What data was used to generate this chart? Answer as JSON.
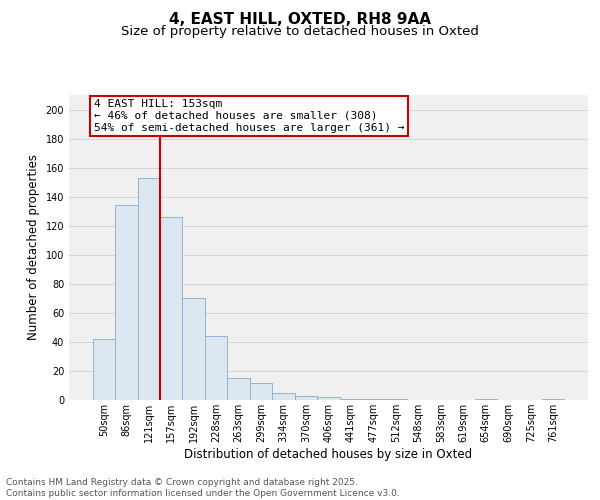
{
  "title": "4, EAST HILL, OXTED, RH8 9AA",
  "subtitle": "Size of property relative to detached houses in Oxted",
  "xlabel": "Distribution of detached houses by size in Oxted",
  "ylabel": "Number of detached properties",
  "categories": [
    "50sqm",
    "86sqm",
    "121sqm",
    "157sqm",
    "192sqm",
    "228sqm",
    "263sqm",
    "299sqm",
    "334sqm",
    "370sqm",
    "406sqm",
    "441sqm",
    "477sqm",
    "512sqm",
    "548sqm",
    "583sqm",
    "619sqm",
    "654sqm",
    "690sqm",
    "725sqm",
    "761sqm"
  ],
  "values": [
    42,
    134,
    153,
    126,
    70,
    44,
    15,
    12,
    5,
    3,
    2,
    1,
    1,
    1,
    0,
    0,
    0,
    1,
    0,
    0,
    1
  ],
  "bar_color": "#dce6f1",
  "bar_edge_color": "#95b3d7",
  "vline_index": 2.5,
  "vline_color": "#cc0000",
  "annotation_line1": "4 EAST HILL: 153sqm",
  "annotation_line2": "← 46% of detached houses are smaller (308)",
  "annotation_line3": "54% of semi-detached houses are larger (361) →",
  "annotation_box_color": "#cc0000",
  "ylim": [
    0,
    210
  ],
  "yticks": [
    0,
    20,
    40,
    60,
    80,
    100,
    120,
    140,
    160,
    180,
    200
  ],
  "grid_color": "#d0d0d0",
  "plot_bg_color": "#f0f0f0",
  "footer": "Contains HM Land Registry data © Crown copyright and database right 2025.\nContains public sector information licensed under the Open Government Licence v3.0.",
  "title_fontsize": 11,
  "subtitle_fontsize": 9.5,
  "axis_label_fontsize": 8.5,
  "tick_fontsize": 7,
  "annotation_fontsize": 8,
  "footer_fontsize": 6.5
}
